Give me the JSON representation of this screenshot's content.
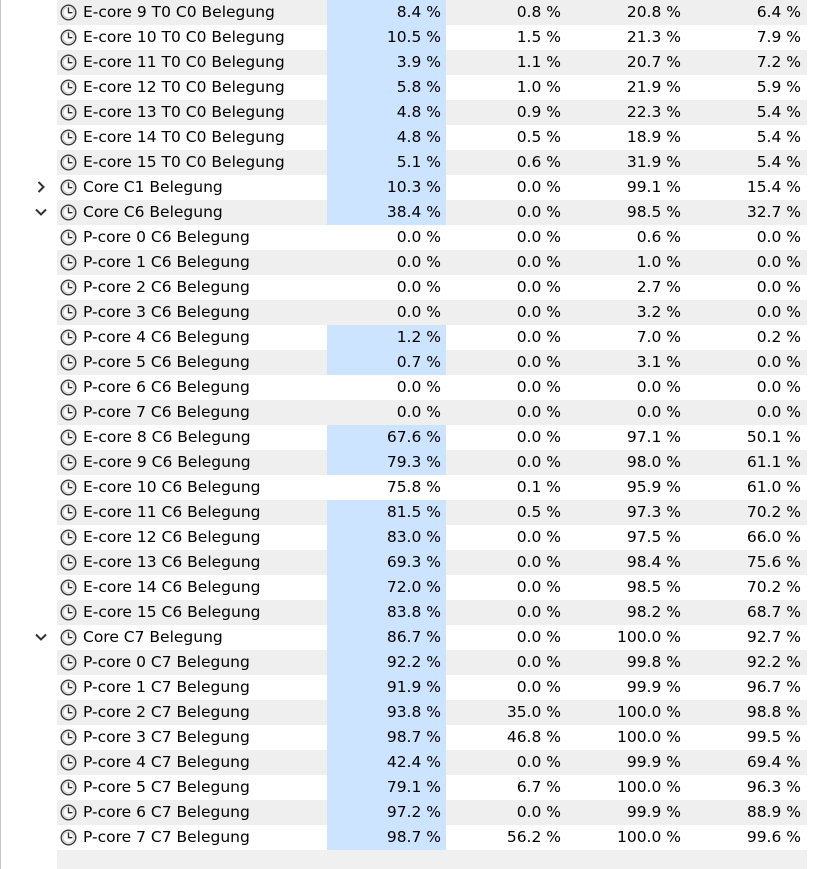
{
  "rows": [
    {
      "label": "E-core 9 T0 C0 Belegung",
      "v": [
        "8.4 %",
        "0.8 %",
        "20.8 %",
        "6.4 %"
      ],
      "hl": true,
      "expander": ""
    },
    {
      "label": "E-core 10 T0 C0 Belegung",
      "v": [
        "10.5 %",
        "1.5 %",
        "21.3 %",
        "7.9 %"
      ],
      "hl": true,
      "expander": ""
    },
    {
      "label": "E-core 11 T0 C0 Belegung",
      "v": [
        "3.9 %",
        "1.1 %",
        "20.7 %",
        "7.2 %"
      ],
      "hl": true,
      "expander": ""
    },
    {
      "label": "E-core 12 T0 C0 Belegung",
      "v": [
        "5.8 %",
        "1.0 %",
        "21.9 %",
        "5.9 %"
      ],
      "hl": true,
      "expander": ""
    },
    {
      "label": "E-core 13 T0 C0 Belegung",
      "v": [
        "4.8 %",
        "0.9 %",
        "22.3 %",
        "5.4 %"
      ],
      "hl": true,
      "expander": ""
    },
    {
      "label": "E-core 14 T0 C0 Belegung",
      "v": [
        "4.8 %",
        "0.5 %",
        "18.9 %",
        "5.4 %"
      ],
      "hl": true,
      "expander": ""
    },
    {
      "label": "E-core 15 T0 C0 Belegung",
      "v": [
        "5.1 %",
        "0.6 %",
        "31.9 %",
        "5.4 %"
      ],
      "hl": true,
      "expander": ""
    },
    {
      "label": "Core C1 Belegung",
      "v": [
        "10.3 %",
        "0.0 %",
        "99.1 %",
        "15.4 %"
      ],
      "hl": true,
      "expander": "collapsed"
    },
    {
      "label": "Core C6 Belegung",
      "v": [
        "38.4 %",
        "0.0 %",
        "98.5 %",
        "32.7 %"
      ],
      "hl": true,
      "expander": "expanded"
    },
    {
      "label": "P-core 0 C6 Belegung",
      "v": [
        "0.0 %",
        "0.0 %",
        "0.6 %",
        "0.0 %"
      ],
      "hl": false,
      "expander": ""
    },
    {
      "label": "P-core 1 C6 Belegung",
      "v": [
        "0.0 %",
        "0.0 %",
        "1.0 %",
        "0.0 %"
      ],
      "hl": false,
      "expander": ""
    },
    {
      "label": "P-core 2 C6 Belegung",
      "v": [
        "0.0 %",
        "0.0 %",
        "2.7 %",
        "0.0 %"
      ],
      "hl": false,
      "expander": ""
    },
    {
      "label": "P-core 3 C6 Belegung",
      "v": [
        "0.0 %",
        "0.0 %",
        "3.2 %",
        "0.0 %"
      ],
      "hl": false,
      "expander": ""
    },
    {
      "label": "P-core 4 C6 Belegung",
      "v": [
        "1.2 %",
        "0.0 %",
        "7.0 %",
        "0.2 %"
      ],
      "hl": true,
      "expander": ""
    },
    {
      "label": "P-core 5 C6 Belegung",
      "v": [
        "0.7 %",
        "0.0 %",
        "3.1 %",
        "0.0 %"
      ],
      "hl": true,
      "expander": ""
    },
    {
      "label": "P-core 6 C6 Belegung",
      "v": [
        "0.0 %",
        "0.0 %",
        "0.0 %",
        "0.0 %"
      ],
      "hl": false,
      "expander": ""
    },
    {
      "label": "P-core 7 C6 Belegung",
      "v": [
        "0.0 %",
        "0.0 %",
        "0.0 %",
        "0.0 %"
      ],
      "hl": false,
      "expander": ""
    },
    {
      "label": "E-core 8 C6 Belegung",
      "v": [
        "67.6 %",
        "0.0 %",
        "97.1 %",
        "50.1 %"
      ],
      "hl": true,
      "expander": ""
    },
    {
      "label": "E-core 9 C6 Belegung",
      "v": [
        "79.3 %",
        "0.0 %",
        "98.0 %",
        "61.1 %"
      ],
      "hl": true,
      "expander": ""
    },
    {
      "label": "E-core 10 C6 Belegung",
      "v": [
        "75.8 %",
        "0.1 %",
        "95.9 %",
        "61.0 %"
      ],
      "hl": false,
      "expander": ""
    },
    {
      "label": "E-core 11 C6 Belegung",
      "v": [
        "81.5 %",
        "0.5 %",
        "97.3 %",
        "70.2 %"
      ],
      "hl": true,
      "expander": ""
    },
    {
      "label": "E-core 12 C6 Belegung",
      "v": [
        "83.0 %",
        "0.0 %",
        "97.5 %",
        "66.0 %"
      ],
      "hl": true,
      "expander": ""
    },
    {
      "label": "E-core 13 C6 Belegung",
      "v": [
        "69.3 %",
        "0.0 %",
        "98.4 %",
        "75.6 %"
      ],
      "hl": true,
      "expander": ""
    },
    {
      "label": "E-core 14 C6 Belegung",
      "v": [
        "72.0 %",
        "0.0 %",
        "98.5 %",
        "70.2 %"
      ],
      "hl": true,
      "expander": ""
    },
    {
      "label": "E-core 15 C6 Belegung",
      "v": [
        "83.8 %",
        "0.0 %",
        "98.2 %",
        "68.7 %"
      ],
      "hl": true,
      "expander": ""
    },
    {
      "label": "Core C7 Belegung",
      "v": [
        "86.7 %",
        "0.0 %",
        "100.0 %",
        "92.7 %"
      ],
      "hl": true,
      "expander": "expanded"
    },
    {
      "label": "P-core 0 C7 Belegung",
      "v": [
        "92.2 %",
        "0.0 %",
        "99.8 %",
        "92.2 %"
      ],
      "hl": true,
      "expander": ""
    },
    {
      "label": "P-core 1 C7 Belegung",
      "v": [
        "91.9 %",
        "0.0 %",
        "99.9 %",
        "96.7 %"
      ],
      "hl": true,
      "expander": ""
    },
    {
      "label": "P-core 2 C7 Belegung",
      "v": [
        "93.8 %",
        "35.0 %",
        "100.0 %",
        "98.8 %"
      ],
      "hl": true,
      "expander": ""
    },
    {
      "label": "P-core 3 C7 Belegung",
      "v": [
        "98.7 %",
        "46.8 %",
        "100.0 %",
        "99.5 %"
      ],
      "hl": true,
      "expander": ""
    },
    {
      "label": "P-core 4 C7 Belegung",
      "v": [
        "42.4 %",
        "0.0 %",
        "99.9 %",
        "69.4 %"
      ],
      "hl": true,
      "expander": ""
    },
    {
      "label": "P-core 5 C7 Belegung",
      "v": [
        "79.1 %",
        "6.7 %",
        "100.0 %",
        "96.3 %"
      ],
      "hl": true,
      "expander": ""
    },
    {
      "label": "P-core 6 C7 Belegung",
      "v": [
        "97.2 %",
        "0.0 %",
        "99.9 %",
        "88.9 %"
      ],
      "hl": true,
      "expander": ""
    },
    {
      "label": "P-core 7 C7 Belegung",
      "v": [
        "98.7 %",
        "56.2 %",
        "100.0 %",
        "99.6 %"
      ],
      "hl": true,
      "expander": ""
    }
  ],
  "icons": {
    "row_icon": "clock-icon",
    "expand": "chevron-right-icon",
    "collapse": "chevron-down-icon"
  },
  "colors": {
    "highlight": "#cce4ff",
    "stripe": "#efefef"
  }
}
